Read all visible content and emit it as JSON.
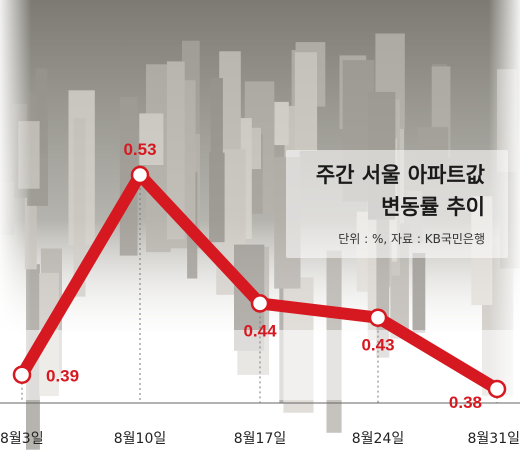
{
  "chart_data": {
    "type": "line",
    "title_lines": [
      "주간 서울 아파트값",
      "변동률 추이"
    ],
    "source_note": "단위 : %, 자료 : KB국민은행",
    "categories": [
      "8월3일",
      "8월10일",
      "8월17일",
      "8월24일",
      "8월31일"
    ],
    "series": [
      {
        "values": [
          0.39,
          0.53,
          0.44,
          0.43,
          0.38
        ],
        "color": "#d61920"
      }
    ],
    "data_labels": [
      "0.39",
      "0.53",
      "0.44",
      "0.43",
      "0.38"
    ],
    "ylim": [
      0.36,
      0.55
    ],
    "grid": false,
    "legend": "none",
    "background": "aerial photo of Seoul apartment complexes"
  }
}
